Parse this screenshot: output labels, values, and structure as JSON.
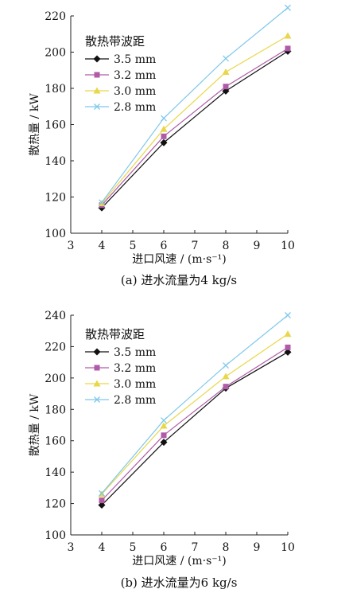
{
  "chart_data": [
    {
      "type": "line",
      "caption": "(a) 进水流量为4 kg/s",
      "xlabel": "进口风速 / (m·s⁻¹)",
      "ylabel": "散热量 / kW",
      "xlim": [
        3,
        10
      ],
      "ylim": [
        100,
        220
      ],
      "xticks": [
        3,
        4,
        5,
        6,
        7,
        8,
        9,
        10
      ],
      "yticks": [
        100,
        120,
        140,
        160,
        180,
        200,
        220
      ],
      "legend_title": "散热带波距",
      "legend_position": "top-left",
      "x": [
        4,
        6,
        8,
        10
      ],
      "series": [
        {
          "name": "3.5 mm",
          "color": "#111111",
          "marker": "diamond",
          "values": [
            114,
            150,
            178.5,
            200.5
          ]
        },
        {
          "name": "3.2 mm",
          "color": "#b05aa8",
          "marker": "square",
          "values": [
            115.5,
            153.5,
            181,
            202
          ]
        },
        {
          "name": "3.0 mm",
          "color": "#e8d74a",
          "marker": "triangle",
          "values": [
            116.5,
            157.5,
            189,
            209
          ]
        },
        {
          "name": "2.8 mm",
          "color": "#7ec8ec",
          "marker": "x",
          "values": [
            117,
            163.5,
            196.5,
            224.5
          ]
        }
      ]
    },
    {
      "type": "line",
      "caption": "(b) 进水流量为6 kg/s",
      "xlabel": "进口风速 / (m·s⁻¹)",
      "ylabel": "散热量 / kW",
      "xlim": [
        3,
        10
      ],
      "ylim": [
        100,
        240
      ],
      "xticks": [
        3,
        4,
        5,
        6,
        7,
        8,
        9,
        10
      ],
      "yticks": [
        100,
        120,
        140,
        160,
        180,
        200,
        220,
        240
      ],
      "legend_title": "散热带波距",
      "legend_position": "top-left",
      "x": [
        4,
        6,
        8,
        10
      ],
      "series": [
        {
          "name": "3.5 mm",
          "color": "#111111",
          "marker": "diamond",
          "values": [
            119,
            159,
            193.5,
            216.5
          ]
        },
        {
          "name": "3.2 mm",
          "color": "#b05aa8",
          "marker": "square",
          "values": [
            122,
            163.5,
            194.5,
            219.5
          ]
        },
        {
          "name": "3.0 mm",
          "color": "#e8d74a",
          "marker": "triangle",
          "values": [
            126,
            169.5,
            201,
            228
          ]
        },
        {
          "name": "2.8 mm",
          "color": "#7ec8ec",
          "marker": "x",
          "values": [
            126.5,
            173,
            208,
            240
          ]
        }
      ]
    }
  ]
}
